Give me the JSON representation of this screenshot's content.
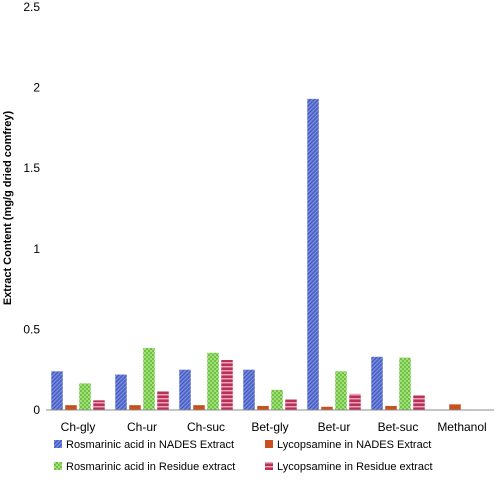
{
  "chart_data": {
    "type": "bar",
    "title": "",
    "xlabel": "",
    "ylabel": "Extract Content (mg/g dried comfrey)",
    "ylim": [
      0,
      2.5
    ],
    "yticks": [
      "0",
      "0.5",
      "1",
      "1.5",
      "2",
      "2.5"
    ],
    "ytick_values": [
      0,
      0.5,
      1,
      1.5,
      2,
      2.5
    ],
    "grid": false,
    "legend_position": "bottom",
    "categories": [
      "Ch-gly",
      "Ch-ur",
      "Ch-suc",
      "Bet-gly",
      "Bet-ur",
      "Bet-suc",
      "Methanol"
    ],
    "series": [
      {
        "name": "Rosmarinic acid in NADES Extract",
        "color": "#4a5fc4",
        "stripe": "#7b8fe0",
        "pattern": "diagonal",
        "values": [
          0.24,
          0.22,
          0.25,
          0.25,
          1.93,
          0.33,
          0.0
        ]
      },
      {
        "name": "Lycopsamine in NADES Extract",
        "color": "#c8501c",
        "stripe": "#e07840",
        "pattern": "solid",
        "values": [
          0.03,
          0.03,
          0.03,
          0.025,
          0.02,
          0.025,
          0.035
        ]
      },
      {
        "name": "Rosmarinic acid in Residue extract",
        "color": "#6cc43a",
        "stripe": "#a6dd84",
        "pattern": "checker",
        "values": [
          0.165,
          0.385,
          0.355,
          0.125,
          0.24,
          0.325,
          0.0
        ]
      },
      {
        "name": "Lycopsamine in Residue extract",
        "color": "#b43258",
        "stripe": "#f0a0b8",
        "pattern": "horizontal",
        "values": [
          0.06,
          0.115,
          0.31,
          0.065,
          0.1,
          0.09,
          0.0
        ]
      }
    ]
  }
}
